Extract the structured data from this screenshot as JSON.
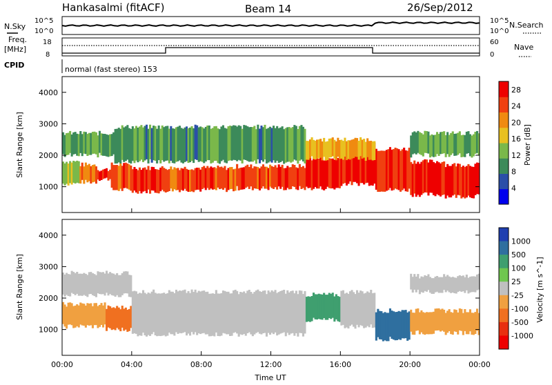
{
  "header": {
    "station": "Hankasalmi (fitACF)",
    "beam": "Beam 14",
    "date": "26/Sep/2012"
  },
  "noise_panel": {
    "left_label": "N.Sky",
    "right_label": "N.Search",
    "left_ticks": [
      "10^5",
      "10^0"
    ],
    "right_ticks": [
      "10^5",
      "10^0"
    ]
  },
  "freq_panel": {
    "left_label_1": "Freq.",
    "left_label_2": "[MHz]",
    "right_label": "Nave",
    "left_ticks": [
      "18",
      "8"
    ],
    "right_ticks": [
      "60",
      "0"
    ]
  },
  "cpid_panel": {
    "label": "CPID",
    "mode_text": "normal (fast stereo) 153"
  },
  "colors": {
    "power_scale": [
      "#0000ee",
      "#2b4fa8",
      "#3c8a5a",
      "#7ab84a",
      "#e8c020",
      "#f08a10",
      "#f04010",
      "#ee0000"
    ],
    "velocity_scale": [
      "#1f3fb0",
      "#2f6f9f",
      "#3f9f6f",
      "#6fc64f",
      "#c0c0c0",
      "#f0a040",
      "#f07020",
      "#e83010",
      "#ee0000"
    ]
  },
  "chart_data": [
    {
      "type": "heatmap",
      "name": "power",
      "title": "",
      "xlabel": "Time UT",
      "ylabel": "Slant Range [km]",
      "x_ticks": [
        "00:00",
        "04:00",
        "08:00",
        "12:00",
        "16:00",
        "20:00",
        "00:00"
      ],
      "y_ticks": [
        "1000",
        "2000",
        "3000",
        "4000"
      ],
      "ylim": [
        180,
        4500
      ],
      "xlim_hours": [
        0,
        24
      ],
      "colorbar": {
        "label": "Power [dB]",
        "ticks": [
          "4",
          "8",
          "12",
          "16",
          "20",
          "24",
          "28"
        ],
        "range": [
          0,
          30
        ]
      },
      "bands": [
        {
          "t0": 0.0,
          "t1": 1.0,
          "r0": 1100,
          "r1": 1800,
          "value": 14
        },
        {
          "t0": 1.0,
          "t1": 2.0,
          "r0": 1150,
          "r1": 1700,
          "value": 22
        },
        {
          "t0": 2.0,
          "t1": 3.0,
          "r0": 1250,
          "r1": 1550,
          "value": 27
        },
        {
          "t0": 2.8,
          "t1": 4.0,
          "r0": 900,
          "r1": 1700,
          "value": 24
        },
        {
          "t0": 4.0,
          "t1": 6.0,
          "r0": 850,
          "r1": 1600,
          "value": 26
        },
        {
          "t0": 6.0,
          "t1": 10.0,
          "r0": 900,
          "r1": 1600,
          "value": 24
        },
        {
          "t0": 10.0,
          "t1": 14.0,
          "r0": 950,
          "r1": 1650,
          "value": 25
        },
        {
          "t0": 14.0,
          "t1": 16.0,
          "r0": 950,
          "r1": 1900,
          "value": 28
        },
        {
          "t0": 16.0,
          "t1": 18.0,
          "r0": 1100,
          "r1": 2400,
          "value": 28
        },
        {
          "t0": 18.0,
          "t1": 20.0,
          "r0": 900,
          "r1": 2200,
          "value": 26
        },
        {
          "t0": 20.0,
          "t1": 22.0,
          "r0": 750,
          "r1": 1800,
          "value": 27
        },
        {
          "t0": 22.0,
          "t1": 24.0,
          "r0": 700,
          "r1": 1700,
          "value": 28
        },
        {
          "t0": 0.0,
          "t1": 3.0,
          "r0": 2000,
          "r1": 2700,
          "value": 12
        },
        {
          "t0": 3.0,
          "t1": 14.0,
          "r0": 1800,
          "r1": 2900,
          "value": 10
        },
        {
          "t0": 14.0,
          "t1": 18.0,
          "r0": 1900,
          "r1": 2500,
          "value": 18
        },
        {
          "t0": 20.0,
          "t1": 24.0,
          "r0": 2000,
          "r1": 2700,
          "value": 12
        }
      ]
    },
    {
      "type": "heatmap",
      "name": "velocity",
      "title": "",
      "xlabel": "Time UT",
      "ylabel": "Slant Range [km]",
      "x_ticks": [
        "00:00",
        "04:00",
        "08:00",
        "12:00",
        "16:00",
        "20:00",
        "00:00"
      ],
      "y_ticks": [
        "1000",
        "2000",
        "3000",
        "4000"
      ],
      "ylim": [
        180,
        4500
      ],
      "xlim_hours": [
        0,
        24
      ],
      "colorbar": {
        "label": "Velocity [m s^-1]",
        "ticks": [
          "1000",
          "500",
          "100",
          "25",
          "-25",
          "-100",
          "-500",
          "-1000"
        ]
      },
      "bands": [
        {
          "t0": 0.0,
          "t1": 2.5,
          "r0": 1100,
          "r1": 1800,
          "value": "-100"
        },
        {
          "t0": 2.5,
          "t1": 4.0,
          "r0": 1000,
          "r1": 1700,
          "value": "-500"
        },
        {
          "t0": 4.0,
          "t1": 14.0,
          "r0": 850,
          "r1": 2200,
          "value": "0"
        },
        {
          "t0": 14.0,
          "t1": 16.0,
          "r0": 1300,
          "r1": 2100,
          "value": "100"
        },
        {
          "t0": 16.0,
          "t1": 18.0,
          "r0": 1100,
          "r1": 2200,
          "value": "0"
        },
        {
          "t0": 18.0,
          "t1": 20.0,
          "r0": 700,
          "r1": 1600,
          "value": "500"
        },
        {
          "t0": 20.0,
          "t1": 24.0,
          "r0": 900,
          "r1": 1600,
          "value": "-100"
        },
        {
          "t0": 0.0,
          "t1": 4.0,
          "r0": 2100,
          "r1": 2800,
          "value": "0"
        },
        {
          "t0": 20.0,
          "t1": 24.0,
          "r0": 2200,
          "r1": 2700,
          "value": "0"
        }
      ]
    }
  ]
}
